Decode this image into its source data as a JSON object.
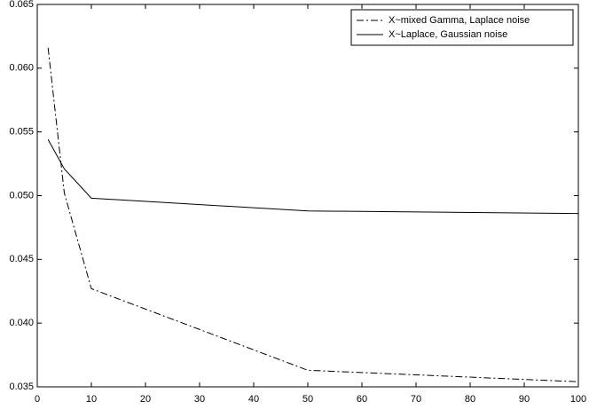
{
  "chart_data": {
    "type": "line",
    "x": [
      2,
      5,
      10,
      50,
      100
    ],
    "series": [
      {
        "name": "X~mixed Gamma, Laplace noise",
        "color": "#000000",
        "dash": "dashdot",
        "values": [
          0.0616,
          0.0502,
          0.0427,
          0.0363,
          0.0354
        ]
      },
      {
        "name": "X~Laplace, Gaussian noise",
        "color": "#000000",
        "dash": "solid",
        "values": [
          0.0544,
          0.0521,
          0.0498,
          0.0488,
          0.0486
        ]
      }
    ],
    "xlim": [
      0,
      100
    ],
    "xticks": [
      0,
      10,
      20,
      30,
      40,
      50,
      60,
      70,
      80,
      90,
      100
    ],
    "ylim": [
      0.035,
      0.065
    ],
    "yticks": [
      0.035,
      {
        "value": 0.04,
        "label": "0.040"
      },
      0.045,
      {
        "value": 0.05,
        "label": "0.050"
      },
      0.055,
      {
        "value": 0.06,
        "label": "0.060"
      },
      0.065
    ],
    "grid": false,
    "legend": "upper right"
  }
}
